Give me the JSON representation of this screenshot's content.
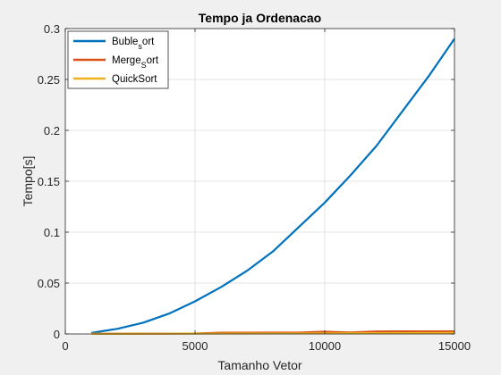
{
  "chart_data": {
    "type": "line",
    "title": "Tempo ja Ordenacao",
    "xlabel": "Tamanho Vetor",
    "ylabel": "Tempo[s]",
    "xlim": [
      0,
      15000
    ],
    "ylim": [
      0,
      0.3
    ],
    "xticks": [
      0,
      5000,
      10000,
      15000
    ],
    "xtick_labels": [
      "0",
      "5000",
      "10000",
      "15000"
    ],
    "yticks": [
      0,
      0.05,
      0.1,
      0.15,
      0.2,
      0.25,
      0.3
    ],
    "ytick_labels": [
      "0",
      "0.05",
      "0.1",
      "0.15",
      "0.2",
      "0.25",
      "0.3"
    ],
    "grid": true,
    "legend_position": "top-left",
    "series": [
      {
        "name": "Buble_sort",
        "legend_main": "Buble",
        "legend_sub": "s",
        "legend_tail": "ort",
        "color": "#0072BD",
        "x": [
          1000,
          2000,
          3000,
          4000,
          5000,
          6000,
          7000,
          8000,
          9000,
          10000,
          11000,
          12000,
          13000,
          14000,
          15000
        ],
        "y": [
          0.001,
          0.005,
          0.011,
          0.02,
          0.032,
          0.046,
          0.062,
          0.081,
          0.105,
          0.129,
          0.156,
          0.185,
          0.219,
          0.253,
          0.29
        ]
      },
      {
        "name": "Merge_sort",
        "legend_main": "Merge",
        "legend_sub": "S",
        "legend_tail": "ort",
        "color": "#D95319",
        "x": [
          1000,
          2000,
          3000,
          4000,
          5000,
          6000,
          7000,
          8000,
          9000,
          10000,
          11000,
          12000,
          13000,
          14000,
          15000
        ],
        "y": [
          0.0001,
          0.0002,
          0.0003,
          0.0004,
          0.0005,
          0.0012,
          0.0012,
          0.0013,
          0.0013,
          0.0022,
          0.0014,
          0.0024,
          0.0025,
          0.0026,
          0.0026
        ]
      },
      {
        "name": "QuickSort",
        "legend_main": "QuickSort",
        "legend_sub": "",
        "legend_tail": "",
        "color": "#EDB120",
        "x": [
          1000,
          2000,
          3000,
          4000,
          5000,
          6000,
          7000,
          8000,
          9000,
          10000,
          11000,
          12000,
          13000,
          14000,
          15000
        ],
        "y": [
          0.0001,
          0.0001,
          0.0002,
          0.0002,
          0.0003,
          0.0004,
          0.0004,
          0.0005,
          0.0005,
          0.0006,
          0.0007,
          0.0008,
          0.0008,
          0.0009,
          0.001
        ]
      }
    ]
  }
}
